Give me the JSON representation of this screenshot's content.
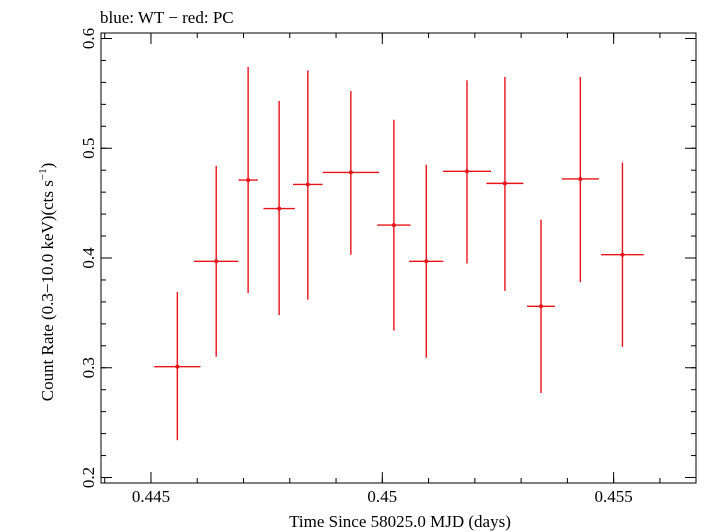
{
  "chart_data": {
    "type": "scatter",
    "title": "blue: WT − red: PC",
    "xlabel": "Time Since 58025.0 MJD (days)",
    "ylabel": "Count Rate (0.3−10.0 keV)(cts s",
    "ylabel_sup": "−1",
    "ylabel_close": ")",
    "xlim": [
      0.44392,
      0.45678
    ],
    "ylim": [
      0.195,
      0.605
    ],
    "x_ticks": [
      {
        "value": 0.445,
        "label": "0.445"
      },
      {
        "value": 0.45,
        "label": "0.45"
      },
      {
        "value": 0.455,
        "label": "0.455"
      }
    ],
    "y_ticks": [
      {
        "value": 0.2,
        "label": "0.2"
      },
      {
        "value": 0.3,
        "label": "0.3"
      },
      {
        "value": 0.4,
        "label": "0.4"
      },
      {
        "value": 0.5,
        "label": "0.5"
      },
      {
        "value": 0.6,
        "label": "0.6"
      }
    ],
    "x_minor_step": 0.001,
    "y_minor_step": 0.02,
    "grid": false,
    "series": [
      {
        "color": "#e8141a",
        "points": [
          {
            "x": 0.44557,
            "xlo": 0.44507,
            "xhi": 0.44607,
            "y": 0.301,
            "ylo": 0.234,
            "yhi": 0.369
          },
          {
            "x": 0.44641,
            "xlo": 0.44593,
            "xhi": 0.44689,
            "y": 0.397,
            "ylo": 0.31,
            "yhi": 0.484
          },
          {
            "x": 0.4471,
            "xlo": 0.44689,
            "xhi": 0.44731,
            "y": 0.471,
            "ylo": 0.368,
            "yhi": 0.574
          },
          {
            "x": 0.44777,
            "xlo": 0.44743,
            "xhi": 0.44811,
            "y": 0.445,
            "ylo": 0.348,
            "yhi": 0.543
          },
          {
            "x": 0.44839,
            "xlo": 0.44807,
            "xhi": 0.44871,
            "y": 0.467,
            "ylo": 0.362,
            "yhi": 0.571
          },
          {
            "x": 0.44932,
            "xlo": 0.44871,
            "xhi": 0.44993,
            "y": 0.478,
            "ylo": 0.403,
            "yhi": 0.552
          },
          {
            "x": 0.45025,
            "xlo": 0.44989,
            "xhi": 0.45061,
            "y": 0.43,
            "ylo": 0.334,
            "yhi": 0.526
          },
          {
            "x": 0.45095,
            "xlo": 0.45058,
            "xhi": 0.45132,
            "y": 0.397,
            "ylo": 0.309,
            "yhi": 0.485
          },
          {
            "x": 0.45183,
            "xlo": 0.45131,
            "xhi": 0.45235,
            "y": 0.479,
            "ylo": 0.395,
            "yhi": 0.562
          },
          {
            "x": 0.45265,
            "xlo": 0.45225,
            "xhi": 0.45305,
            "y": 0.468,
            "ylo": 0.37,
            "yhi": 0.565
          },
          {
            "x": 0.45343,
            "xlo": 0.45313,
            "xhi": 0.45373,
            "y": 0.356,
            "ylo": 0.277,
            "yhi": 0.435
          },
          {
            "x": 0.45428,
            "xlo": 0.45388,
            "xhi": 0.45468,
            "y": 0.472,
            "ylo": 0.378,
            "yhi": 0.565
          },
          {
            "x": 0.45519,
            "xlo": 0.45473,
            "xhi": 0.45565,
            "y": 0.403,
            "ylo": 0.319,
            "yhi": 0.487
          }
        ]
      }
    ]
  }
}
